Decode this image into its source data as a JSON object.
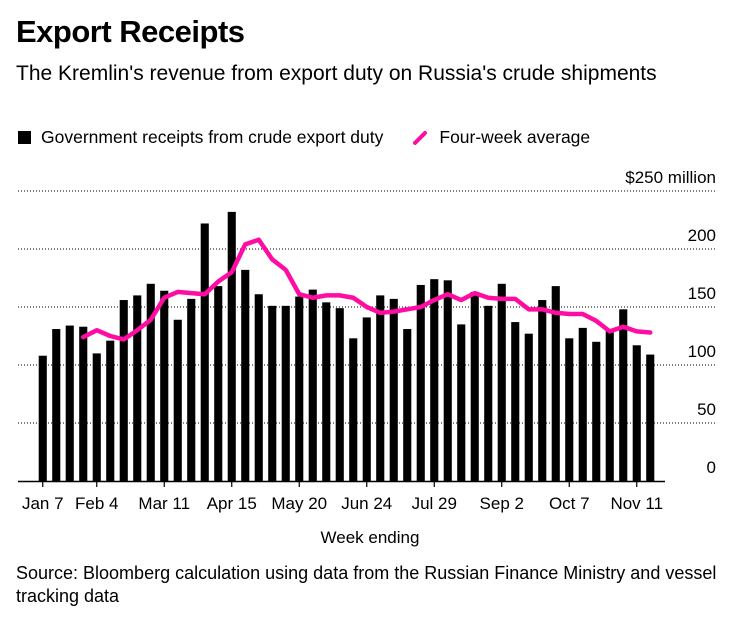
{
  "chart_data": {
    "type": "bar",
    "title": "Export Receipts",
    "subtitle": "The Kremlin's revenue from export duty on Russia's crude shipments",
    "xlabel": "Week ending",
    "ylabel": "",
    "ylim": [
      0,
      250
    ],
    "y_ticks": [
      0,
      50,
      100,
      150,
      200,
      250
    ],
    "y_tick_labels": [
      "0",
      "50",
      "100",
      "150",
      "200",
      "$250 million"
    ],
    "x_tick_labels": [
      "Jan 7",
      "Feb 4",
      "Mar 11",
      "Apr 15",
      "May 20",
      "Jun 24",
      "Jul 29",
      "Sep 2",
      "Oct 7",
      "Nov 11"
    ],
    "x_tick_index": [
      0,
      4,
      9,
      14,
      19,
      24,
      29,
      34,
      39,
      44
    ],
    "legend": [
      "Government receipts from crude export duty",
      "Four-week average"
    ],
    "legend_colors": [
      "#000000",
      "#ff0da2"
    ],
    "series": [
      {
        "name": "Government receipts from crude export duty",
        "type": "bar",
        "color": "#000000",
        "values": [
          108,
          131,
          134,
          133,
          110,
          121,
          156,
          160,
          170,
          164,
          139,
          157,
          222,
          168,
          232,
          182,
          161,
          151,
          151,
          159,
          165,
          154,
          149,
          123,
          141,
          160,
          157,
          131,
          169,
          174,
          173,
          135,
          163,
          151,
          170,
          137,
          127,
          156,
          168,
          123,
          132,
          120,
          129,
          148,
          117,
          109
        ]
      },
      {
        "name": "Four-week average",
        "type": "line",
        "color": "#ff0da2",
        "values": [
          null,
          null,
          null,
          124,
          130,
          125,
          122,
          130,
          139,
          158,
          163,
          162,
          161,
          172,
          180,
          204,
          208,
          191,
          182,
          161,
          158,
          160,
          160,
          158,
          150,
          145,
          146,
          148,
          150,
          156,
          161,
          156,
          162,
          158,
          157,
          157,
          148,
          148,
          145,
          144,
          144,
          138,
          129,
          133,
          129,
          128
        ]
      }
    ]
  },
  "source": "Source: Bloomberg calculation using data from the Russian Finance Ministry and vessel tracking data"
}
